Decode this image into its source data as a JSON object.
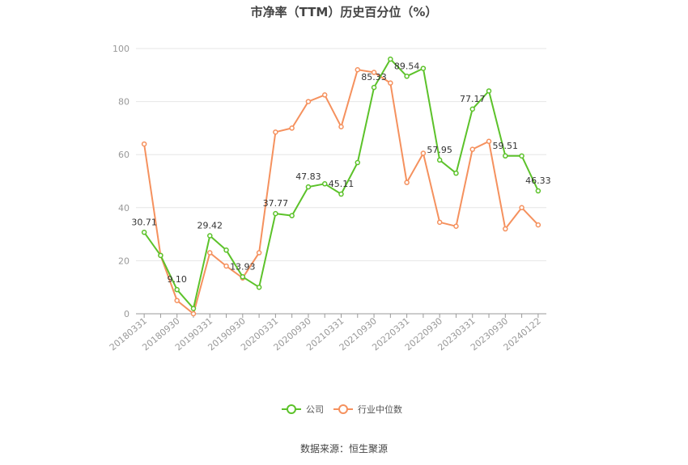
{
  "chart_data": {
    "type": "line",
    "title": "市净率（TTM）历史百分位（%）",
    "source_note": "数据来源：恒生聚源",
    "ylim": [
      0,
      100
    ],
    "y_ticks": [
      "0",
      "20",
      "40",
      "60",
      "80",
      "100"
    ],
    "grid": true,
    "legend_position": "bottom",
    "x": [
      "20180331",
      "20180630",
      "20180930",
      "20181231",
      "20190331",
      "20190630",
      "20190930",
      "20191231",
      "20200331",
      "20200630",
      "20200930",
      "20201231",
      "20210331",
      "20210630",
      "20210930",
      "20211231",
      "20220331",
      "20220630",
      "20220930",
      "20221231",
      "20230331",
      "20230630",
      "20230930",
      "20231231",
      "20240122"
    ],
    "x_tick_labels": [
      "20180331",
      "20180930",
      "20190331",
      "20190930",
      "20200331",
      "20200930",
      "20210331",
      "20210930",
      "20220331",
      "20220930",
      "20230331",
      "20230930",
      "20240122"
    ],
    "series": [
      {
        "name": "公司",
        "color": "#5cc22a",
        "values": [
          30.71,
          22,
          9.1,
          2,
          29.42,
          24,
          13.93,
          10,
          37.77,
          37,
          47.83,
          49,
          45.11,
          57,
          85.33,
          96,
          89.54,
          92.5,
          57.95,
          53,
          77.17,
          84,
          59.51,
          59.5,
          46.33
        ],
        "labels": [
          "30.71",
          "",
          "9.10",
          "",
          "29.42",
          "",
          "13.93",
          "",
          "37.77",
          "",
          "47.83",
          "",
          "45.11",
          "",
          "85.33",
          "",
          "89.54",
          "",
          "57.95",
          "",
          "77.17",
          "",
          "59.51",
          "",
          "46.33"
        ]
      },
      {
        "name": "行业中位数",
        "color": "#f5915e",
        "values": [
          64,
          22,
          5,
          0,
          23,
          18,
          13.5,
          23,
          68.5,
          70,
          80,
          82.5,
          70.5,
          92,
          91,
          87,
          49.5,
          60.5,
          34.5,
          33,
          62,
          65,
          32,
          40,
          33.5
        ]
      }
    ]
  }
}
